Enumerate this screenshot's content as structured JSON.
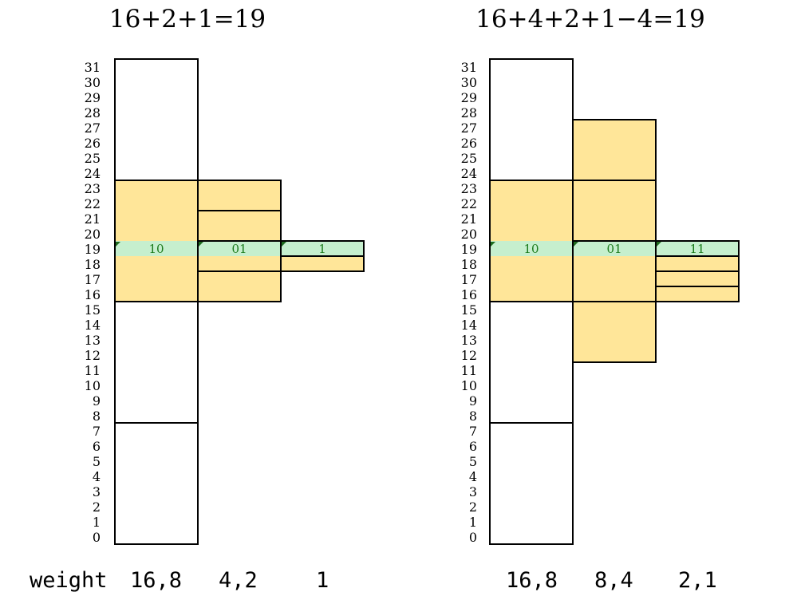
{
  "colors": {
    "interval_fill": "#ffe699",
    "highlight_fill": "#c6efce",
    "outline": "#000000",
    "code_text": "#1a7a1a",
    "marker": "#1f6b1f"
  },
  "diagrams": [
    {
      "heading": "16+2+1=19",
      "scale": [
        0,
        31
      ],
      "highlight_value": 19,
      "levels": [
        {
          "intervals": [
            {
              "start": 0,
              "end": 7,
              "filled": false
            },
            {
              "start": 8,
              "end": 15,
              "filled": false
            },
            {
              "start": 16,
              "end": 23,
              "filled": true
            },
            {
              "start": 24,
              "end": 31,
              "filled": false
            }
          ],
          "code": "10"
        },
        {
          "intervals": [
            {
              "start": 16,
              "end": 17,
              "filled": true
            },
            {
              "start": 18,
              "end": 19,
              "filled": true
            },
            {
              "start": 20,
              "end": 21,
              "filled": true
            },
            {
              "start": 22,
              "end": 23,
              "filled": true
            }
          ],
          "code": "01"
        },
        {
          "intervals": [
            {
              "start": 18,
              "end": 18,
              "filled": true
            },
            {
              "start": 19,
              "end": 19,
              "filled": true
            }
          ],
          "code": "1"
        }
      ],
      "weights": [
        "16,8",
        "4,2",
        "1"
      ]
    },
    {
      "heading": "16+4+2+1−4=19",
      "scale": [
        0,
        31
      ],
      "highlight_value": 19,
      "levels": [
        {
          "intervals": [
            {
              "start": 0,
              "end": 7,
              "filled": false
            },
            {
              "start": 8,
              "end": 15,
              "filled": false
            },
            {
              "start": 16,
              "end": 23,
              "filled": true
            },
            {
              "start": 24,
              "end": 31,
              "filled": false
            }
          ],
          "code": "10"
        },
        {
          "intervals": [
            {
              "start": 12,
              "end": 15,
              "filled": true
            },
            {
              "start": 16,
              "end": 19,
              "filled": true
            },
            {
              "start": 20,
              "end": 23,
              "filled": true
            },
            {
              "start": 24,
              "end": 27,
              "filled": true
            }
          ],
          "code": "01"
        },
        {
          "intervals": [
            {
              "start": 16,
              "end": 16,
              "filled": true
            },
            {
              "start": 17,
              "end": 17,
              "filled": true
            },
            {
              "start": 18,
              "end": 18,
              "filled": true
            },
            {
              "start": 19,
              "end": 19,
              "filled": true
            }
          ],
          "code": "11"
        }
      ],
      "weights": [
        "16,8",
        "8,4",
        "2,1"
      ]
    }
  ],
  "weight_label": "weight"
}
